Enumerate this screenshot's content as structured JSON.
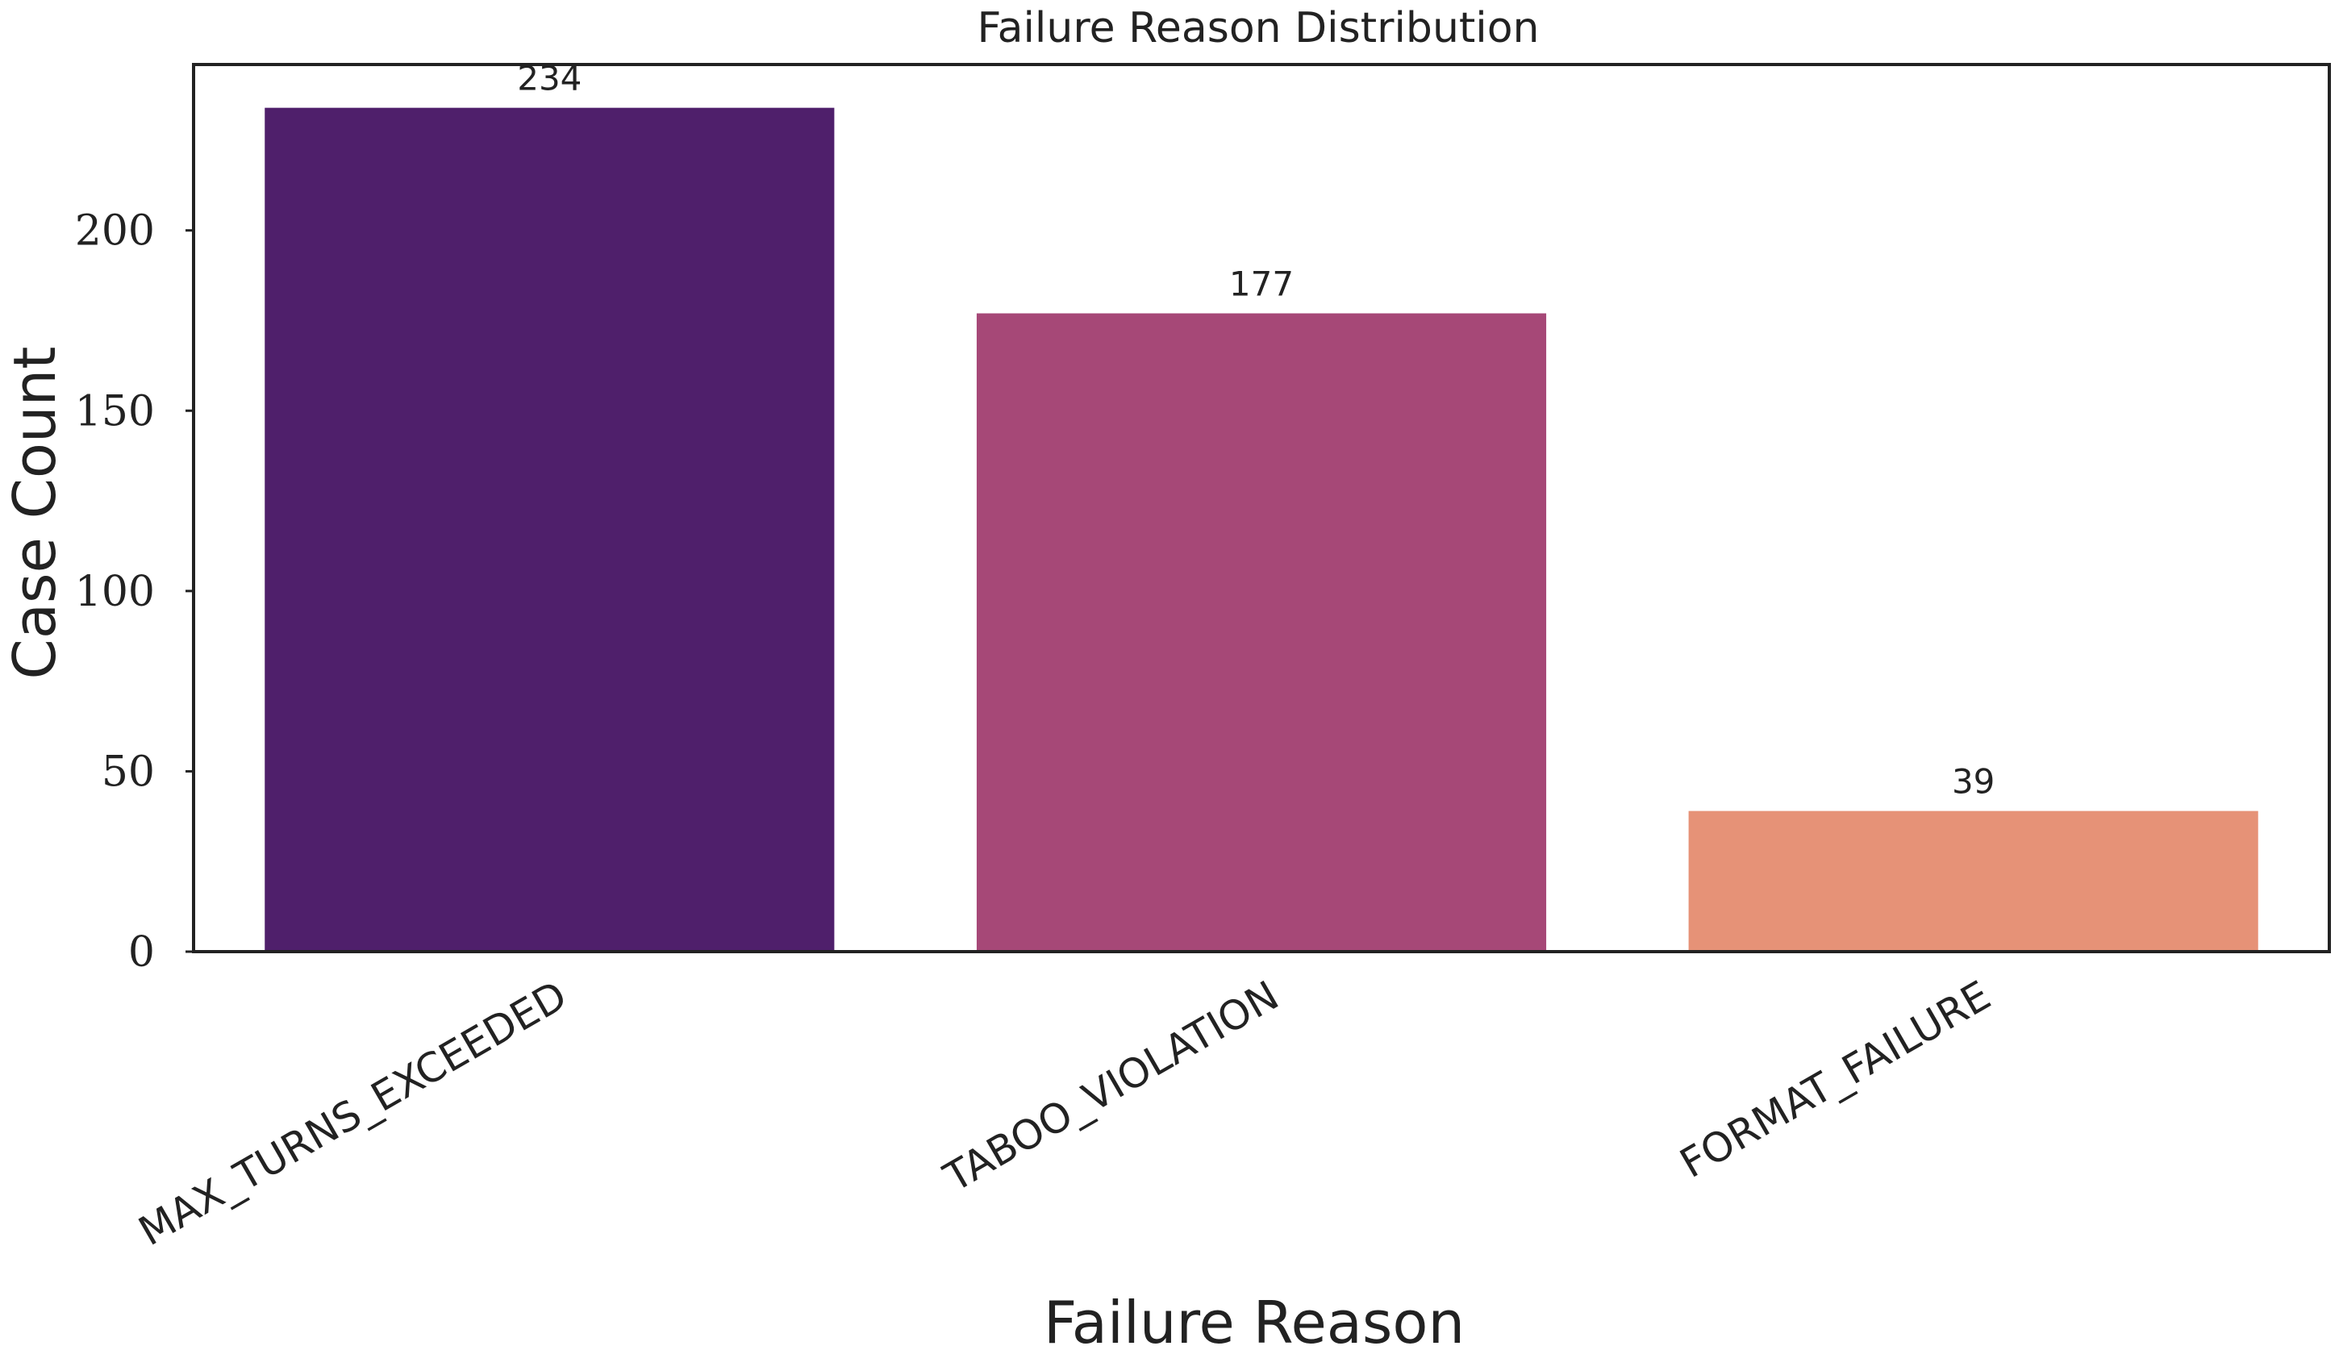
{
  "chart_data": {
    "type": "bar",
    "title": "Failure Reason Distribution",
    "xlabel": "Failure Reason",
    "ylabel": "Case Count",
    "categories": [
      "MAX_TURNS_EXCEEDED",
      "TABOO_VIOLATION",
      "FORMAT_FAILURE"
    ],
    "values": [
      234,
      177,
      39
    ],
    "data_labels": [
      "234",
      "177",
      "39"
    ],
    "bar_colors": [
      "#4f1f6b",
      "#a64877",
      "#e69277"
    ],
    "ylim": [
      0,
      246
    ],
    "yticks": [
      0,
      50,
      100,
      150,
      200
    ],
    "ytick_labels": [
      "0",
      "50",
      "100",
      "150",
      "200"
    ],
    "xtick_rotation_deg": 30,
    "grid": false,
    "legend": "none",
    "frame_color": "#222222"
  }
}
